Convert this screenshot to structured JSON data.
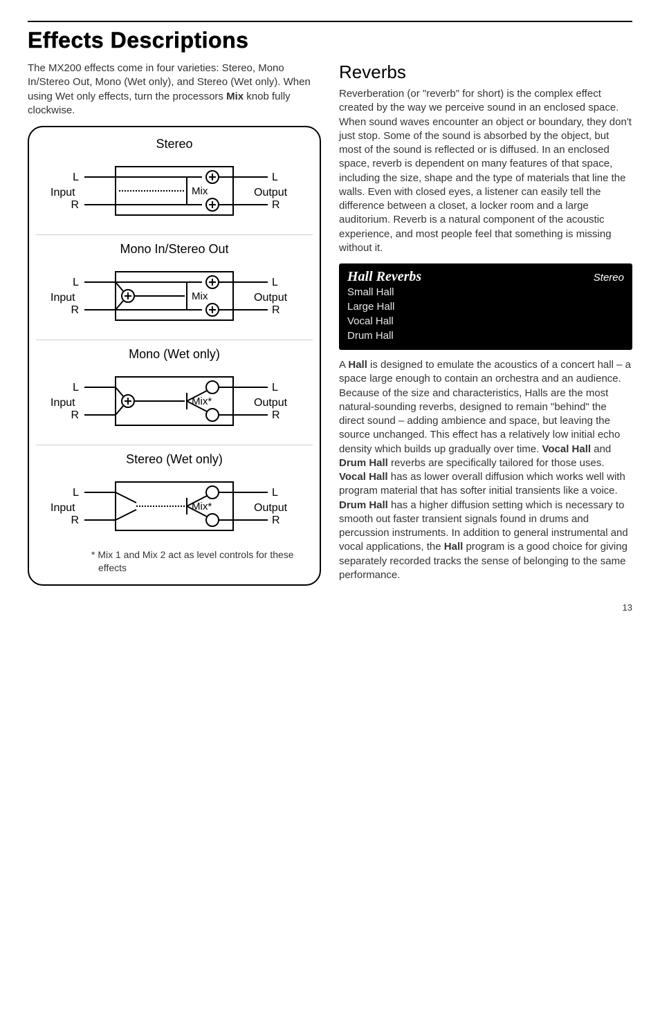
{
  "page": {
    "heading": "Effects Descriptions",
    "page_number": "13"
  },
  "left": {
    "intro_plain1": "The MX200 effects come in four varieties: Stereo, Mono In/Stereo Out, Mono (Wet only), and Stereo (Wet only). When using Wet only effects, turn the processors ",
    "intro_bold": "Mix",
    "intro_plain2": " knob fully clockwise.",
    "diagrams": {
      "d1": {
        "title": "Stereo",
        "left_top": "L",
        "left_bot": "R",
        "right_top": "L",
        "right_bot": "R",
        "input": "Input",
        "output": "Output",
        "mix": "Mix"
      },
      "d2": {
        "title": "Mono In/Stereo Out",
        "left_top": "L",
        "left_bot": "R",
        "right_top": "L",
        "right_bot": "R",
        "input": "Input",
        "output": "Output",
        "mix": "Mix"
      },
      "d3": {
        "title": "Mono (Wet only)",
        "left_top": "L",
        "left_bot": "R",
        "right_top": "L",
        "right_bot": "R",
        "input": "Input",
        "output": "Output",
        "mix": "Mix*"
      },
      "d4": {
        "title": "Stereo (Wet only)",
        "left_top": "L",
        "left_bot": "R",
        "right_top": "L",
        "right_bot": "R",
        "input": "Input",
        "output": "Output",
        "mix": "Mix*"
      },
      "footnote": "* Mix 1 and Mix 2 act as level controls for these effects"
    }
  },
  "right": {
    "subheading": "Reverbs",
    "reverb_intro": "Reverberation (or \"reverb\" for short) is the complex effect created by the way we perceive sound in an enclosed space. When sound waves encounter an object or boundary, they don't just stop. Some of the sound is absorbed by the object, but most of the sound is reflected or is diffused. In an enclosed space, reverb is dependent on many features of that space, including the size, shape and the type of materials that line the walls. Even with closed eyes, a listener can easily tell the difference between a closet, a locker room and a large auditorium. Reverb is a natural component of the acoustic experience, and most people feel that something is missing without it.",
    "info_box": {
      "title": "Hall Reverbs",
      "right": "Stereo",
      "items": [
        "Small Hall",
        "Large Hall",
        "Vocal Hall",
        "Drum Hall"
      ]
    },
    "hall_text_parts": [
      {
        "t": "A "
      },
      {
        "b": "Hall"
      },
      {
        "t": " is designed to emulate the acoustics of a concert hall – a space large enough to contain an orchestra and an audience. Because of the size and characteristics, Halls are the most natural-sounding reverbs, designed to remain \"behind\" the direct sound – adding ambience and space, but leaving the source unchanged. This effect has a relatively low initial echo density which builds up gradually over time. "
      },
      {
        "b": "Vocal Hall"
      },
      {
        "t": " and "
      },
      {
        "b": "Drum Hall"
      },
      {
        "t": " reverbs are specifically tailored for those uses. "
      },
      {
        "b": "Vocal Hall"
      },
      {
        "t": " has as lower overall diffusion which works well with program material that has softer initial transients like a voice. "
      },
      {
        "b": "Drum Hall"
      },
      {
        "t": " has a higher diffusion setting which is necessary to smooth out faster transient signals found in drums and percussion instruments. In addition to general instrumental and vocal applications, the "
      },
      {
        "b": "Hall"
      },
      {
        "t": " program is a good choice for giving separately recorded tracks the sense of belonging to the same performance."
      }
    ]
  }
}
